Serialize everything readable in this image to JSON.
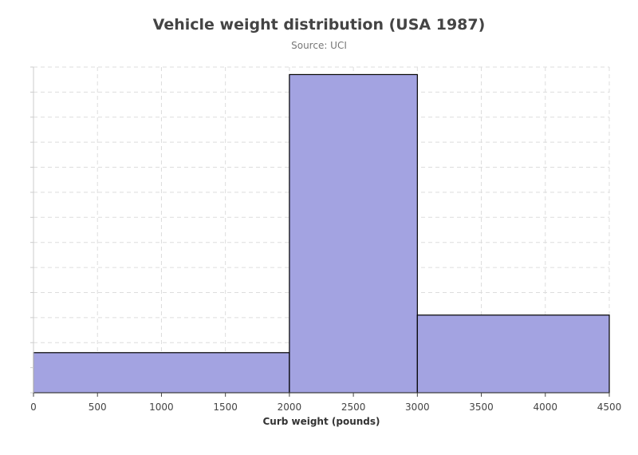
{
  "chart_data": {
    "type": "bar",
    "title": "Vehicle weight distribution (USA 1987)",
    "subtitle": "Source: UCI",
    "xlabel": "Curb weight (pounds)",
    "ylabel": "",
    "xlim": [
      0,
      4500
    ],
    "ylim": [
      0,
      130
    ],
    "x_ticks": [
      0,
      500,
      1000,
      1500,
      2000,
      2500,
      3000,
      3500,
      4000,
      4500
    ],
    "grid": true,
    "bins": [
      {
        "x0": 0,
        "x1": 2000,
        "value": 16
      },
      {
        "x0": 2000,
        "x1": 3000,
        "value": 127
      },
      {
        "x0": 3000,
        "x1": 4500,
        "value": 31
      }
    ],
    "colors": {
      "bar_fill": "#a3a3e1",
      "bar_stroke": "#000000",
      "grid": "#dddddd"
    }
  }
}
